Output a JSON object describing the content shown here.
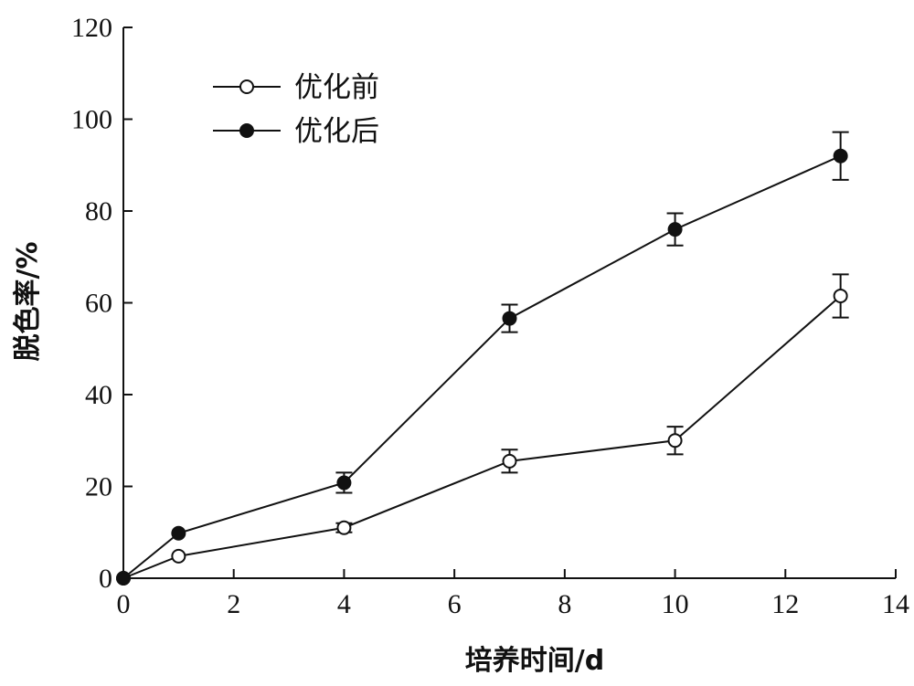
{
  "chart_data": {
    "type": "line",
    "title": "",
    "xlabel": "培养时间/d",
    "ylabel": "脱色率/%",
    "xlim": [
      0,
      14
    ],
    "ylim": [
      0,
      120
    ],
    "xticks": [
      0,
      2,
      4,
      6,
      8,
      10,
      12,
      14
    ],
    "yticks": [
      0,
      20,
      40,
      60,
      80,
      100,
      120
    ],
    "grid": false,
    "legend_position": "top-left",
    "series": [
      {
        "name": "优化前",
        "marker": "open-circle",
        "x": [
          0,
          1,
          4,
          7,
          10,
          13
        ],
        "y": [
          0,
          4.8,
          11,
          25.5,
          30,
          61.5
        ],
        "error": [
          0,
          0,
          1,
          2.5,
          3,
          4.7
        ]
      },
      {
        "name": "优化后",
        "marker": "filled-circle",
        "x": [
          0,
          1,
          4,
          7,
          10,
          13
        ],
        "y": [
          0,
          9.8,
          20.8,
          56.6,
          76,
          92
        ],
        "error": [
          0,
          0,
          2.2,
          3,
          3.5,
          5.2
        ]
      }
    ]
  }
}
